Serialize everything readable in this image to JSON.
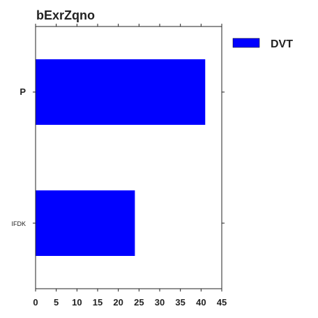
{
  "chart_data": {
    "type": "bar",
    "orientation": "horizontal",
    "title": "bExrZqno",
    "categories": [
      "P",
      "IFDK"
    ],
    "series": [
      {
        "name": "DVT",
        "values": [
          41,
          24
        ],
        "color": "#0000ff"
      }
    ],
    "xlim": [
      0,
      45
    ],
    "xticks": [
      "0",
      "5",
      "10",
      "15",
      "20",
      "25",
      "30",
      "35",
      "40",
      "45"
    ],
    "grid": false,
    "legend_position": "top-right-outside"
  }
}
